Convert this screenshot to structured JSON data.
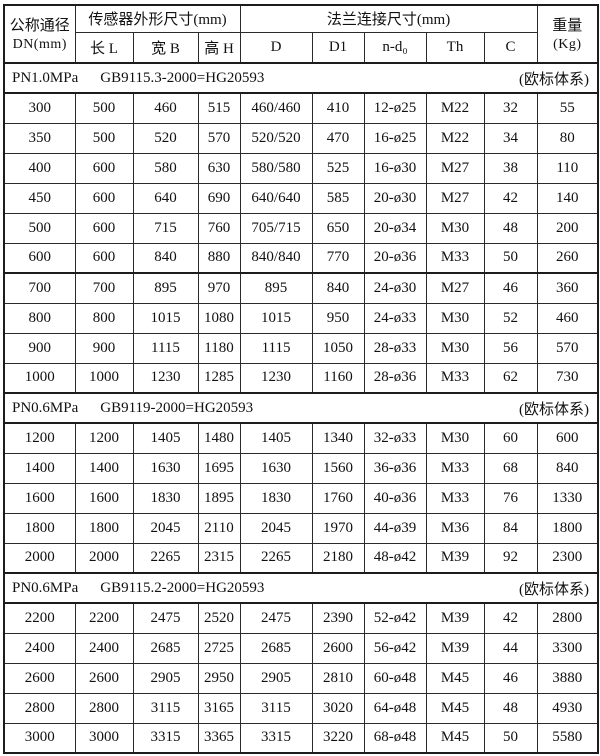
{
  "table": {
    "header": {
      "dn_line1": "公称通径",
      "dn_line2": "DN(mm)",
      "group_sensor": "传感器外形尺寸(mm)",
      "group_flange": "法兰连接尺寸(mm)",
      "weight_line1": "重量",
      "weight_line2": "(Kg)",
      "sub_columns": [
        "长 L",
        "宽 B",
        "高 H",
        "D",
        "D1",
        "n-d₀",
        "Th",
        "C"
      ]
    },
    "sections": [
      {
        "pressure": "PN1.0MPa",
        "standard": "GB9115.3-2000=HG20593",
        "note": "(欧标体系)",
        "rows": [
          [
            "300",
            "500",
            "460",
            "515",
            "460/460",
            "410",
            "12-ø25",
            "M22",
            "32",
            "55"
          ],
          [
            "350",
            "500",
            "520",
            "570",
            "520/520",
            "470",
            "16-ø25",
            "M22",
            "34",
            "80"
          ],
          [
            "400",
            "600",
            "580",
            "630",
            "580/580",
            "525",
            "16-ø30",
            "M27",
            "38",
            "110"
          ],
          [
            "450",
            "600",
            "640",
            "690",
            "640/640",
            "585",
            "20-ø30",
            "M27",
            "42",
            "140"
          ],
          [
            "500",
            "600",
            "715",
            "760",
            "705/715",
            "650",
            "20-ø34",
            "M30",
            "48",
            "200"
          ],
          [
            "600",
            "600",
            "840",
            "880",
            "840/840",
            "770",
            "20-ø36",
            "M33",
            "50",
            "260"
          ],
          [
            "700",
            "700",
            "895",
            "970",
            "895",
            "840",
            "24-ø30",
            "M27",
            "46",
            "360"
          ],
          [
            "800",
            "800",
            "1015",
            "1080",
            "1015",
            "950",
            "24-ø33",
            "M30",
            "52",
            "460"
          ],
          [
            "900",
            "900",
            "1115",
            "1180",
            "1115",
            "1050",
            "28-ø33",
            "M30",
            "56",
            "570"
          ],
          [
            "1000",
            "1000",
            "1230",
            "1285",
            "1230",
            "1160",
            "28-ø36",
            "M33",
            "62",
            "730"
          ]
        ]
      },
      {
        "pressure": "PN0.6MPa",
        "standard": "GB9119-2000=HG20593",
        "note": "(欧标体系)",
        "rows": [
          [
            "1200",
            "1200",
            "1405",
            "1480",
            "1405",
            "1340",
            "32-ø33",
            "M30",
            "60",
            "600"
          ],
          [
            "1400",
            "1400",
            "1630",
            "1695",
            "1630",
            "1560",
            "36-ø36",
            "M33",
            "68",
            "840"
          ],
          [
            "1600",
            "1600",
            "1830",
            "1895",
            "1830",
            "1760",
            "40-ø36",
            "M33",
            "76",
            "1330"
          ],
          [
            "1800",
            "1800",
            "2045",
            "2110",
            "2045",
            "1970",
            "44-ø39",
            "M36",
            "84",
            "1800"
          ],
          [
            "2000",
            "2000",
            "2265",
            "2315",
            "2265",
            "2180",
            "48-ø42",
            "M39",
            "92",
            "2300"
          ]
        ]
      },
      {
        "pressure": "PN0.6MPa",
        "standard": "GB9115.2-2000=HG20593",
        "note": "(欧标体系)",
        "rows": [
          [
            "2200",
            "2200",
            "2475",
            "2520",
            "2475",
            "2390",
            "52-ø42",
            "M39",
            "42",
            "2800"
          ],
          [
            "2400",
            "2400",
            "2685",
            "2725",
            "2685",
            "2600",
            "56-ø42",
            "M39",
            "44",
            "3300"
          ],
          [
            "2600",
            "2600",
            "2905",
            "2950",
            "2905",
            "2810",
            "60-ø48",
            "M45",
            "46",
            "3880"
          ],
          [
            "2800",
            "2800",
            "3115",
            "3165",
            "3115",
            "3020",
            "64-ø48",
            "M45",
            "48",
            "4930"
          ],
          [
            "3000",
            "3000",
            "3315",
            "3365",
            "3315",
            "3220",
            "68-ø48",
            "M45",
            "50",
            "5580"
          ]
        ]
      }
    ]
  }
}
